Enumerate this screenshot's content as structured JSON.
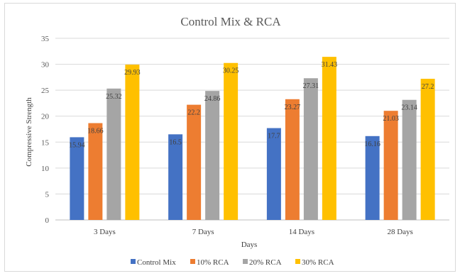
{
  "chart_data": {
    "type": "bar",
    "title": "Control Mix & RCA",
    "xlabel": "Days",
    "ylabel": "Compressive Strength",
    "ylim": [
      0,
      35
    ],
    "yticks": [
      0,
      5,
      10,
      15,
      20,
      25,
      30,
      35
    ],
    "grid": true,
    "legend_position": "bottom",
    "categories": [
      "3 Days",
      "7 Days",
      "14 Days",
      "28 Days"
    ],
    "series": [
      {
        "name": "Control Mix",
        "color": "#4472c4",
        "values": [
          15.94,
          16.5,
          17.7,
          16.16
        ],
        "labels": [
          "15.94",
          "16.5",
          "17.7",
          "16.16"
        ]
      },
      {
        "name": "10% RCA",
        "color": "#ed7d31",
        "values": [
          18.66,
          22.2,
          23.27,
          21.03
        ],
        "labels": [
          "18.66",
          "22.2",
          "23.27",
          "21.03"
        ]
      },
      {
        "name": "20% RCA",
        "color": "#a5a5a5",
        "values": [
          25.32,
          24.86,
          27.31,
          23.14
        ],
        "labels": [
          "25.32",
          "24.86",
          "27.31",
          "23.14"
        ]
      },
      {
        "name": "30% RCA",
        "color": "#ffc000",
        "values": [
          29.93,
          30.25,
          31.43,
          27.2
        ],
        "labels": [
          "29.93",
          "30.25",
          "31.43",
          "27.2"
        ]
      }
    ]
  }
}
